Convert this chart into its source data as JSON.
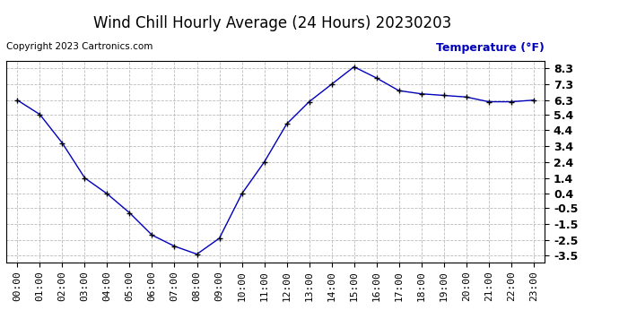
{
  "title": "Wind Chill Hourly Average (24 Hours) 20230203",
  "copyright_text": "Copyright 2023 Cartronics.com",
  "ylabel": "Temperature (°F)",
  "ylabel_color": "#0000bb",
  "line_color": "#0000bb",
  "marker": "+",
  "marker_color": "#000000",
  "background_color": "#ffffff",
  "grid_color": "#bbbbbb",
  "hours": [
    0,
    1,
    2,
    3,
    4,
    5,
    6,
    7,
    8,
    9,
    10,
    11,
    12,
    13,
    14,
    15,
    16,
    17,
    18,
    19,
    20,
    21,
    22,
    23
  ],
  "values": [
    6.3,
    5.4,
    3.6,
    1.4,
    0.4,
    -0.8,
    -2.2,
    -2.9,
    -3.4,
    -2.4,
    0.4,
    2.4,
    4.8,
    6.2,
    7.3,
    8.4,
    7.7,
    6.9,
    6.7,
    6.6,
    6.5,
    6.2,
    6.2,
    6.3
  ],
  "yticks": [
    8.3,
    7.3,
    6.3,
    5.4,
    4.4,
    3.4,
    2.4,
    1.4,
    0.4,
    -0.5,
    -1.5,
    -2.5,
    -3.5
  ],
  "ylim": [
    -3.9,
    8.8
  ],
  "xlim": [
    -0.5,
    23.5
  ],
  "title_fontsize": 12,
  "axis_fontsize": 8,
  "ylabel_fontsize": 9,
  "copyright_fontsize": 7.5
}
